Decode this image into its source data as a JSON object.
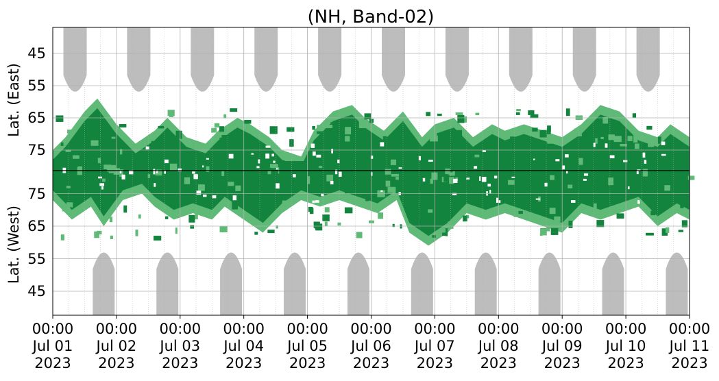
{
  "chart_data": {
    "type": "heatmap",
    "title": "(NH, Band-02)",
    "ylabel_east": "Lat. (East)",
    "ylabel_west": "Lat. (West)",
    "x_ticks": [
      {
        "time": "00:00",
        "date": "Jul 01",
        "year": "2023"
      },
      {
        "time": "00:00",
        "date": "Jul 02",
        "year": "2023"
      },
      {
        "time": "00:00",
        "date": "Jul 03",
        "year": "2023"
      },
      {
        "time": "00:00",
        "date": "Jul 04",
        "year": "2023"
      },
      {
        "time": "00:00",
        "date": "Jul 05",
        "year": "2023"
      },
      {
        "time": "00:00",
        "date": "Jul 06",
        "year": "2023"
      },
      {
        "time": "00:00",
        "date": "Jul 07",
        "year": "2023"
      },
      {
        "time": "00:00",
        "date": "Jul 08",
        "year": "2023"
      },
      {
        "time": "00:00",
        "date": "Jul 09",
        "year": "2023"
      },
      {
        "time": "00:00",
        "date": "Jul 10",
        "year": "2023"
      },
      {
        "time": "00:00",
        "date": "Jul 11",
        "year": "2023"
      }
    ],
    "y_ticks_east": [
      "45",
      "55",
      "65",
      "75"
    ],
    "y_ticks_west": [
      "75",
      "65",
      "55",
      "45"
    ],
    "grid": true,
    "colors": {
      "dark_green": "#13843d",
      "light_green": "#5fba78",
      "daylight_gray": "#bdbdbd",
      "grid": "#b0b0b0",
      "center_line": "#000000"
    },
    "daylight_east_days": [
      0.35,
      1.35,
      2.35,
      3.35,
      4.35,
      5.35,
      6.35,
      7.35,
      8.35,
      9.35
    ],
    "daylight_west_days": [
      0.8,
      1.8,
      2.8,
      3.8,
      4.8,
      5.8,
      6.8,
      7.8,
      8.8,
      9.8
    ],
    "activity_east": [
      {
        "day": 0.0,
        "lat": 78
      },
      {
        "day": 0.2,
        "lat": 74
      },
      {
        "day": 0.5,
        "lat": 66
      },
      {
        "day": 0.7,
        "lat": 62
      },
      {
        "day": 1.0,
        "lat": 70
      },
      {
        "day": 1.3,
        "lat": 76
      },
      {
        "day": 1.6,
        "lat": 72
      },
      {
        "day": 1.8,
        "lat": 68
      },
      {
        "day": 2.1,
        "lat": 74
      },
      {
        "day": 2.4,
        "lat": 76
      },
      {
        "day": 2.6,
        "lat": 72
      },
      {
        "day": 2.9,
        "lat": 68
      },
      {
        "day": 3.1,
        "lat": 70
      },
      {
        "day": 3.4,
        "lat": 74
      },
      {
        "day": 3.6,
        "lat": 78
      },
      {
        "day": 3.9,
        "lat": 80
      },
      {
        "day": 4.1,
        "lat": 72
      },
      {
        "day": 4.4,
        "lat": 66
      },
      {
        "day": 4.7,
        "lat": 64
      },
      {
        "day": 4.9,
        "lat": 68
      },
      {
        "day": 5.2,
        "lat": 72
      },
      {
        "day": 5.5,
        "lat": 66
      },
      {
        "day": 5.8,
        "lat": 74
      },
      {
        "day": 6.0,
        "lat": 70
      },
      {
        "day": 6.3,
        "lat": 68
      },
      {
        "day": 6.6,
        "lat": 74
      },
      {
        "day": 6.9,
        "lat": 70
      },
      {
        "day": 7.1,
        "lat": 72
      },
      {
        "day": 7.4,
        "lat": 70
      },
      {
        "day": 7.7,
        "lat": 72
      },
      {
        "day": 8.0,
        "lat": 74
      },
      {
        "day": 8.3,
        "lat": 70
      },
      {
        "day": 8.6,
        "lat": 64
      },
      {
        "day": 8.9,
        "lat": 66
      },
      {
        "day": 9.2,
        "lat": 72
      },
      {
        "day": 9.5,
        "lat": 74
      },
      {
        "day": 9.7,
        "lat": 70
      },
      {
        "day": 10.0,
        "lat": 74
      }
    ],
    "activity_west": [
      {
        "day": 0.0,
        "lat": 76
      },
      {
        "day": 0.3,
        "lat": 70
      },
      {
        "day": 0.6,
        "lat": 74
      },
      {
        "day": 0.8,
        "lat": 68
      },
      {
        "day": 1.1,
        "lat": 76
      },
      {
        "day": 1.4,
        "lat": 78
      },
      {
        "day": 1.6,
        "lat": 74
      },
      {
        "day": 1.9,
        "lat": 70
      },
      {
        "day": 2.2,
        "lat": 72
      },
      {
        "day": 2.5,
        "lat": 70
      },
      {
        "day": 2.7,
        "lat": 74
      },
      {
        "day": 3.0,
        "lat": 70
      },
      {
        "day": 3.3,
        "lat": 66
      },
      {
        "day": 3.6,
        "lat": 72
      },
      {
        "day": 3.9,
        "lat": 76
      },
      {
        "day": 4.2,
        "lat": 74
      },
      {
        "day": 4.5,
        "lat": 76
      },
      {
        "day": 4.8,
        "lat": 74
      },
      {
        "day": 5.1,
        "lat": 72
      },
      {
        "day": 5.4,
        "lat": 76
      },
      {
        "day": 5.6,
        "lat": 66
      },
      {
        "day": 5.9,
        "lat": 62
      },
      {
        "day": 6.2,
        "lat": 66
      },
      {
        "day": 6.5,
        "lat": 72
      },
      {
        "day": 6.8,
        "lat": 70
      },
      {
        "day": 7.1,
        "lat": 72
      },
      {
        "day": 7.4,
        "lat": 70
      },
      {
        "day": 7.7,
        "lat": 68
      },
      {
        "day": 8.0,
        "lat": 66
      },
      {
        "day": 8.3,
        "lat": 72
      },
      {
        "day": 8.6,
        "lat": 70
      },
      {
        "day": 8.9,
        "lat": 72
      },
      {
        "day": 9.2,
        "lat": 74
      },
      {
        "day": 9.5,
        "lat": 68
      },
      {
        "day": 9.8,
        "lat": 72
      },
      {
        "day": 10.0,
        "lat": 70
      }
    ]
  }
}
